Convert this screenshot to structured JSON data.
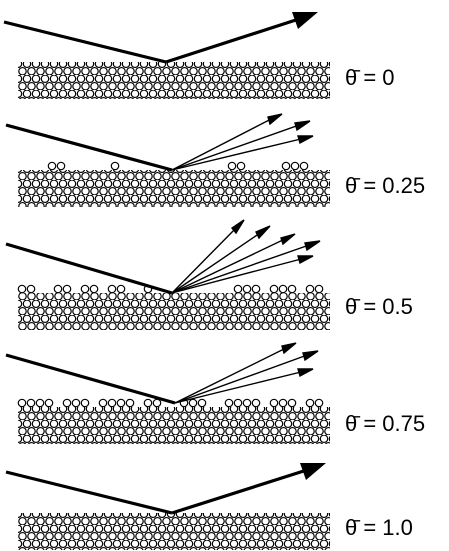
{
  "panels": [
    {
      "label": "θ̄ = 0",
      "coverage": 0.0,
      "reflection": "specular"
    },
    {
      "label": "θ̄ = 0.25",
      "coverage": 0.25,
      "reflection": "diffuse"
    },
    {
      "label": "θ̄ = 0.5",
      "coverage": 0.5,
      "reflection": "diffuse"
    },
    {
      "label": "θ̄ = 0.75",
      "coverage": 0.75,
      "reflection": "diffuse"
    },
    {
      "label": "θ̄ = 1.0",
      "coverage": 1.0,
      "reflection": "specular"
    }
  ]
}
